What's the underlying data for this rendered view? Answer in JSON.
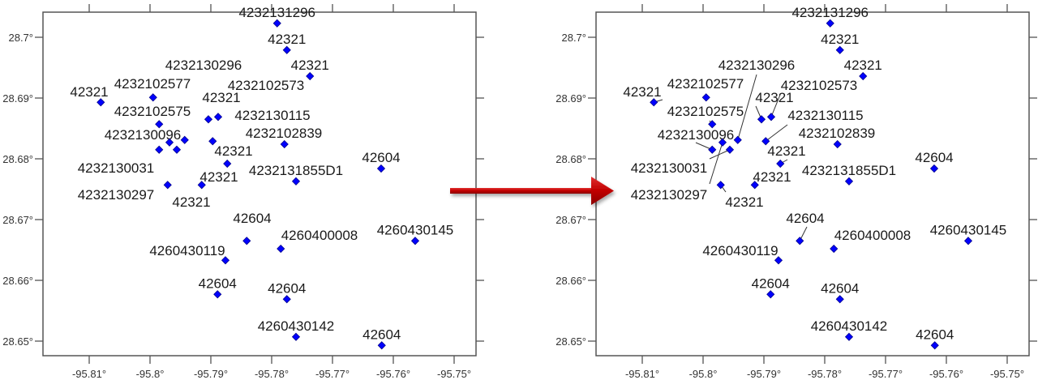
{
  "colors": {
    "point": "#0000ff",
    "point_edge": "#00008b",
    "frame": "#555555",
    "arrow": "#c00000",
    "leader": "#333333"
  },
  "arrow_icon": "right-arrow",
  "chart_data": [
    {
      "type": "scatter",
      "xlim": [
        -95.8176,
        -95.7465
      ],
      "ylim": [
        28.646,
        28.7041
      ],
      "xticks": [
        -95.81,
        -95.8,
        -95.79,
        -95.78,
        -95.77,
        -95.76,
        -95.75
      ],
      "xtick_labels": [
        "-95.81°",
        "-95.8°",
        "-95.79°",
        "-95.78°",
        "-95.77°",
        "-95.76°",
        "-95.75°"
      ],
      "yticks": [
        28.7,
        28.69,
        28.68,
        28.67,
        28.66,
        28.65
      ],
      "ytick_labels": [
        "28.7°",
        "28.69°",
        "28.68°",
        "28.67°",
        "28.66°",
        "28.65°"
      ],
      "grid": false,
      "leader_lines": false,
      "points": [
        {
          "lon": -95.7791,
          "lat": 28.7023,
          "label": "4232131296"
        },
        {
          "lon": -95.7775,
          "lat": 28.6979,
          "label": "42321"
        },
        {
          "lon": -95.7737,
          "lat": 28.6936,
          "label": "42321"
        },
        {
          "lon": -95.8081,
          "lat": 28.6893,
          "label": "42321"
        },
        {
          "lon": -95.7995,
          "lat": 28.6901,
          "label": "4232102577"
        },
        {
          "lon": -95.7985,
          "lat": 28.6857,
          "label": "4232102575"
        },
        {
          "lon": -95.7904,
          "lat": 28.6865,
          "label": "42321"
        },
        {
          "lon": -95.7888,
          "lat": 28.6869,
          "label": "4232102573"
        },
        {
          "lon": -95.7943,
          "lat": 28.6831,
          "label": "4232130296"
        },
        {
          "lon": -95.7897,
          "lat": 28.6829,
          "label": "4232130115"
        },
        {
          "lon": -95.7985,
          "lat": 28.6815,
          "label": "4232130096"
        },
        {
          "lon": -95.7968,
          "lat": 28.6827,
          "label": "4232130297"
        },
        {
          "lon": -95.7956,
          "lat": 28.6815,
          "label": "4232130031"
        },
        {
          "lon": -95.7779,
          "lat": 28.6824,
          "label": "4232102839"
        },
        {
          "lon": -95.7873,
          "lat": 28.6792,
          "label": "42321"
        },
        {
          "lon": -95.776,
          "lat": 28.6763,
          "label": "4232131855D1"
        },
        {
          "lon": -95.7915,
          "lat": 28.6757,
          "label": "42321"
        },
        {
          "lon": -95.7971,
          "lat": 28.6757,
          "label": "42321"
        },
        {
          "lon": -95.762,
          "lat": 28.6784,
          "label": "42604"
        },
        {
          "lon": -95.7841,
          "lat": 28.6665,
          "label": "42604"
        },
        {
          "lon": -95.7785,
          "lat": 28.6652,
          "label": "4260400008"
        },
        {
          "lon": -95.7876,
          "lat": 28.6633,
          "label": "4260430119"
        },
        {
          "lon": -95.7564,
          "lat": 28.6665,
          "label": "4260430145"
        },
        {
          "lon": -95.7889,
          "lat": 28.6577,
          "label": "42604"
        },
        {
          "lon": -95.7775,
          "lat": 28.6569,
          "label": "42604"
        },
        {
          "lon": -95.776,
          "lat": 28.6507,
          "label": "4260430142"
        },
        {
          "lon": -95.7619,
          "lat": 28.6493,
          "label": "42604"
        }
      ]
    },
    {
      "type": "scatter",
      "xlim": [
        -95.8176,
        -95.7465
      ],
      "ylim": [
        28.646,
        28.7041
      ],
      "xticks": [
        -95.81,
        -95.8,
        -95.79,
        -95.78,
        -95.77,
        -95.76,
        -95.75
      ],
      "xtick_labels": [
        "-95.81°",
        "-95.8°",
        "-95.79°",
        "-95.78°",
        "-95.77°",
        "-95.76°",
        "-95.75°"
      ],
      "yticks": [
        28.7,
        28.69,
        28.68,
        28.67,
        28.66,
        28.65
      ],
      "ytick_labels": [
        "28.7°",
        "28.69°",
        "28.68°",
        "28.67°",
        "28.66°",
        "28.65°"
      ],
      "grid": false,
      "leader_lines": true,
      "points": [
        {
          "lon": -95.7791,
          "lat": 28.7023,
          "label": "4232131296"
        },
        {
          "lon": -95.7775,
          "lat": 28.6979,
          "label": "42321"
        },
        {
          "lon": -95.7737,
          "lat": 28.6936,
          "label": "42321"
        },
        {
          "lon": -95.8081,
          "lat": 28.6893,
          "label": "42321"
        },
        {
          "lon": -95.7995,
          "lat": 28.6901,
          "label": "4232102577"
        },
        {
          "lon": -95.7985,
          "lat": 28.6857,
          "label": "4232102575"
        },
        {
          "lon": -95.7904,
          "lat": 28.6865,
          "label": "42321"
        },
        {
          "lon": -95.7888,
          "lat": 28.6869,
          "label": "4232102573"
        },
        {
          "lon": -95.7943,
          "lat": 28.6831,
          "label": "4232130296"
        },
        {
          "lon": -95.7897,
          "lat": 28.6829,
          "label": "4232130115"
        },
        {
          "lon": -95.7985,
          "lat": 28.6815,
          "label": "4232130096"
        },
        {
          "lon": -95.7968,
          "lat": 28.6827,
          "label": "4232130297"
        },
        {
          "lon": -95.7956,
          "lat": 28.6815,
          "label": "4232130031"
        },
        {
          "lon": -95.7779,
          "lat": 28.6824,
          "label": "4232102839"
        },
        {
          "lon": -95.7873,
          "lat": 28.6792,
          "label": "42321"
        },
        {
          "lon": -95.776,
          "lat": 28.6763,
          "label": "4232131855D1"
        },
        {
          "lon": -95.7915,
          "lat": 28.6757,
          "label": "42321"
        },
        {
          "lon": -95.7971,
          "lat": 28.6757,
          "label": "42321"
        },
        {
          "lon": -95.762,
          "lat": 28.6784,
          "label": "42604"
        },
        {
          "lon": -95.7841,
          "lat": 28.6665,
          "label": "42604"
        },
        {
          "lon": -95.7785,
          "lat": 28.6652,
          "label": "4260400008"
        },
        {
          "lon": -95.7876,
          "lat": 28.6633,
          "label": "4260430119"
        },
        {
          "lon": -95.7564,
          "lat": 28.6665,
          "label": "4260430145"
        },
        {
          "lon": -95.7889,
          "lat": 28.6577,
          "label": "42604"
        },
        {
          "lon": -95.7775,
          "lat": 28.6569,
          "label": "42604"
        },
        {
          "lon": -95.776,
          "lat": 28.6507,
          "label": "4260430142"
        },
        {
          "lon": -95.7619,
          "lat": 28.6493,
          "label": "42604"
        }
      ]
    }
  ]
}
